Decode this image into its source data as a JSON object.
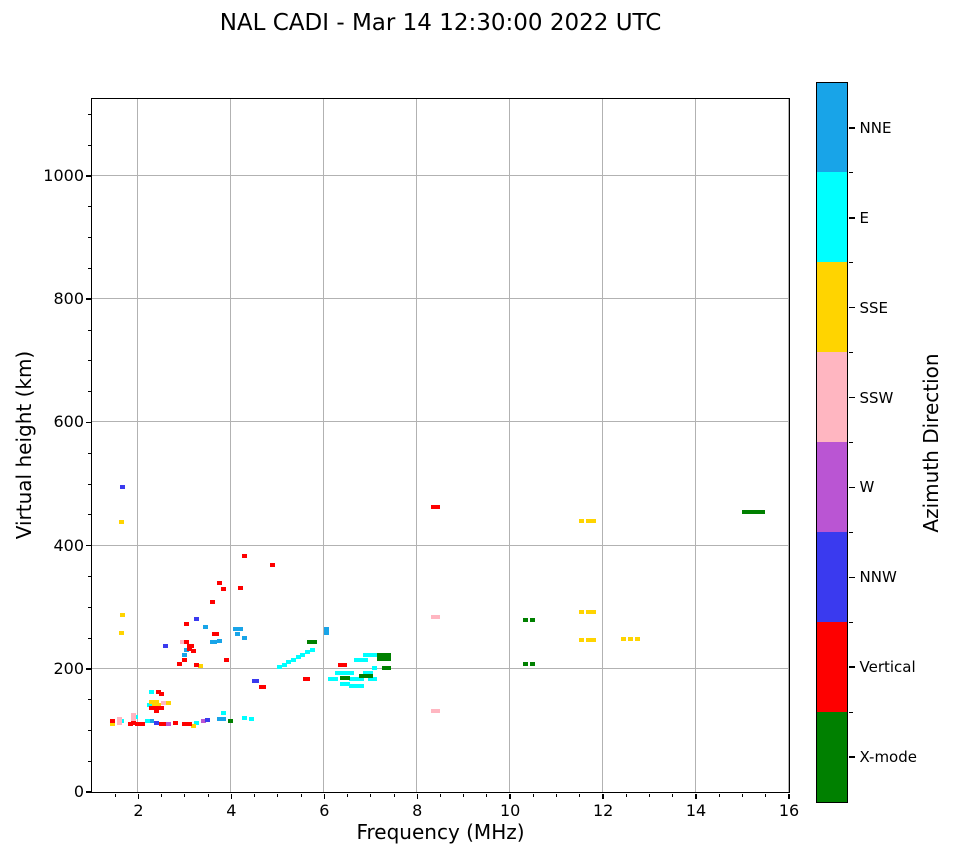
{
  "title": "NAL CADI - Mar 14 12:30:00 2022 UTC",
  "axes": {
    "xlabel": "Frequency (MHz)",
    "ylabel": "Virtual height (km)",
    "xlim": [
      1,
      16
    ],
    "ylim": [
      0,
      1125
    ],
    "xticks": [
      2,
      4,
      6,
      8,
      10,
      12,
      14,
      16
    ],
    "yticks": [
      0,
      200,
      400,
      600,
      800,
      1000
    ],
    "x_minor_step": 0.5,
    "y_minor_step": 50,
    "grid": true,
    "grid_color": "#b2b2b2"
  },
  "colorbar": {
    "label": "Azimuth Direction",
    "categories_top_to_bottom": [
      {
        "label": "NNE",
        "color": "#18A4E8"
      },
      {
        "label": "E",
        "color": "#00FFFF"
      },
      {
        "label": "SSE",
        "color": "#FFD400"
      },
      {
        "label": "SSW",
        "color": "#FFB6C1"
      },
      {
        "label": "W",
        "color": "#BA55D3"
      },
      {
        "label": "NNW",
        "color": "#3A3AEF"
      },
      {
        "label": "Vertical",
        "color": "#FE0000"
      },
      {
        "label": "X-mode",
        "color": "#008000"
      }
    ]
  },
  "chart_data": {
    "type": "scatter",
    "title": "NAL CADI - Mar 14 12:30:00 2022 UTC",
    "xlabel": "Frequency (MHz)",
    "ylabel": "Virtual height (km)",
    "xlim": [
      1,
      16
    ],
    "ylim": [
      0,
      1125
    ],
    "legend_position": "right-colorbar",
    "series": [
      {
        "name": "NNE",
        "color": "#18A4E8",
        "points": [
          [
            2.3,
            114
          ],
          [
            3.0,
            222
          ],
          [
            3.05,
            229
          ],
          [
            3.45,
            267
          ],
          [
            3.6,
            243
          ],
          [
            3.65,
            243
          ],
          [
            3.75,
            245
          ],
          [
            3.75,
            118
          ],
          [
            3.85,
            118
          ],
          [
            4.1,
            264
          ],
          [
            4.2,
            264
          ],
          [
            4.15,
            255
          ],
          [
            4.3,
            250
          ],
          [
            6.05,
            264
          ],
          [
            6.05,
            258
          ]
        ]
      },
      {
        "name": "E",
        "color": "#00FFFF",
        "points": [
          [
            1.65,
            115
          ],
          [
            1.95,
            121
          ],
          [
            2.2,
            115
          ],
          [
            2.25,
            141
          ],
          [
            2.3,
            161
          ],
          [
            3.25,
            112
          ],
          [
            3.85,
            127
          ],
          [
            4.3,
            119
          ],
          [
            4.45,
            118
          ],
          [
            5.05,
            202
          ],
          [
            5.15,
            206
          ],
          [
            5.25,
            210
          ],
          [
            5.35,
            214
          ],
          [
            5.45,
            218
          ],
          [
            5.55,
            222
          ],
          [
            5.65,
            226
          ],
          [
            5.75,
            229
          ],
          [
            6.9,
            221
          ],
          [
            7.0,
            221
          ],
          [
            7.1,
            221
          ],
          [
            6.7,
            213
          ],
          [
            6.8,
            213
          ],
          [
            6.9,
            213
          ],
          [
            7.1,
            200
          ],
          [
            6.3,
            192
          ],
          [
            6.4,
            192
          ],
          [
            6.5,
            192
          ],
          [
            6.6,
            192
          ],
          [
            6.9,
            192
          ],
          [
            7.0,
            192
          ],
          [
            6.15,
            183
          ],
          [
            6.25,
            183
          ],
          [
            6.6,
            182
          ],
          [
            6.7,
            182
          ],
          [
            6.8,
            182
          ],
          [
            7.0,
            182
          ],
          [
            7.1,
            182
          ],
          [
            6.4,
            174
          ],
          [
            6.5,
            174
          ],
          [
            6.6,
            172
          ],
          [
            6.7,
            172
          ],
          [
            6.8,
            172
          ]
        ]
      },
      {
        "name": "SSE",
        "color": "#FFD400",
        "points": [
          [
            1.45,
            109
          ],
          [
            1.65,
            437
          ],
          [
            1.67,
            287
          ],
          [
            1.65,
            257
          ],
          [
            2.3,
            146
          ],
          [
            2.4,
            146
          ],
          [
            2.35,
            141
          ],
          [
            2.45,
            141
          ],
          [
            2.65,
            143
          ],
          [
            3.2,
            107
          ],
          [
            3.35,
            203
          ],
          [
            11.55,
            439
          ],
          [
            11.7,
            439
          ],
          [
            11.8,
            439
          ],
          [
            11.55,
            291
          ],
          [
            11.7,
            291
          ],
          [
            11.8,
            291
          ],
          [
            11.55,
            246
          ],
          [
            11.7,
            246
          ],
          [
            11.8,
            246
          ],
          [
            12.45,
            248
          ],
          [
            12.6,
            248
          ],
          [
            12.75,
            248
          ]
        ]
      },
      {
        "name": "SSW",
        "color": "#FFB6C1",
        "points": [
          [
            1.6,
            117
          ],
          [
            1.6,
            111
          ],
          [
            1.9,
            124
          ],
          [
            1.9,
            118
          ],
          [
            2.55,
            143
          ],
          [
            2.95,
            243
          ],
          [
            8.35,
            283
          ],
          [
            8.45,
            283
          ],
          [
            8.35,
            131
          ],
          [
            8.45,
            131
          ]
        ]
      },
      {
        "name": "W",
        "color": "#BA55D3",
        "points": [
          [
            2.65,
            110
          ],
          [
            3.4,
            114
          ]
        ]
      },
      {
        "name": "NNW",
        "color": "#3A3AEF",
        "points": [
          [
            1.67,
            494
          ],
          [
            2.4,
            112
          ],
          [
            2.6,
            236
          ],
          [
            3.25,
            280
          ],
          [
            3.5,
            116
          ],
          [
            4.5,
            180
          ],
          [
            4.55,
            180
          ]
        ]
      },
      {
        "name": "Vertical",
        "color": "#FE0000",
        "points": [
          [
            1.45,
            114
          ],
          [
            1.85,
            110
          ],
          [
            1.9,
            112
          ],
          [
            2.0,
            110
          ],
          [
            2.05,
            110
          ],
          [
            2.1,
            110
          ],
          [
            2.45,
            161
          ],
          [
            2.5,
            159
          ],
          [
            2.3,
            135
          ],
          [
            2.4,
            135
          ],
          [
            2.5,
            135
          ],
          [
            2.4,
            130
          ],
          [
            2.5,
            110
          ],
          [
            2.55,
            110
          ],
          [
            2.8,
            112
          ],
          [
            2.9,
            207
          ],
          [
            3.0,
            110
          ],
          [
            3.05,
            110
          ],
          [
            3.1,
            110
          ],
          [
            3.0,
            213
          ],
          [
            3.05,
            272
          ],
          [
            3.05,
            243
          ],
          [
            3.1,
            237
          ],
          [
            3.15,
            237
          ],
          [
            3.1,
            231
          ],
          [
            3.2,
            228
          ],
          [
            3.25,
            205
          ],
          [
            3.6,
            307
          ],
          [
            3.65,
            256
          ],
          [
            3.7,
            256
          ],
          [
            3.75,
            339
          ],
          [
            3.85,
            328
          ],
          [
            3.9,
            214
          ],
          [
            4.2,
            331
          ],
          [
            4.3,
            383
          ],
          [
            4.65,
            170
          ],
          [
            4.7,
            170
          ],
          [
            4.9,
            367
          ],
          [
            5.6,
            183
          ],
          [
            5.65,
            183
          ],
          [
            6.35,
            205
          ],
          [
            6.45,
            205
          ],
          [
            8.35,
            462
          ],
          [
            8.45,
            462
          ]
        ]
      },
      {
        "name": "X-mode",
        "color": "#008000",
        "points": [
          [
            4.0,
            115
          ],
          [
            5.7,
            243
          ],
          [
            5.8,
            243
          ],
          [
            6.4,
            184
          ],
          [
            6.5,
            184
          ],
          [
            6.8,
            188
          ],
          [
            6.9,
            188
          ],
          [
            7.0,
            188
          ],
          [
            7.2,
            221
          ],
          [
            7.3,
            221
          ],
          [
            7.4,
            221
          ],
          [
            7.2,
            215
          ],
          [
            7.3,
            215
          ],
          [
            7.4,
            215
          ],
          [
            7.3,
            200
          ],
          [
            7.4,
            200
          ],
          [
            10.35,
            279
          ],
          [
            10.5,
            279
          ],
          [
            10.35,
            207
          ],
          [
            10.5,
            207
          ],
          [
            15.05,
            453
          ],
          [
            15.15,
            453
          ],
          [
            15.25,
            453
          ],
          [
            15.35,
            453
          ],
          [
            15.45,
            453
          ]
        ]
      }
    ]
  }
}
